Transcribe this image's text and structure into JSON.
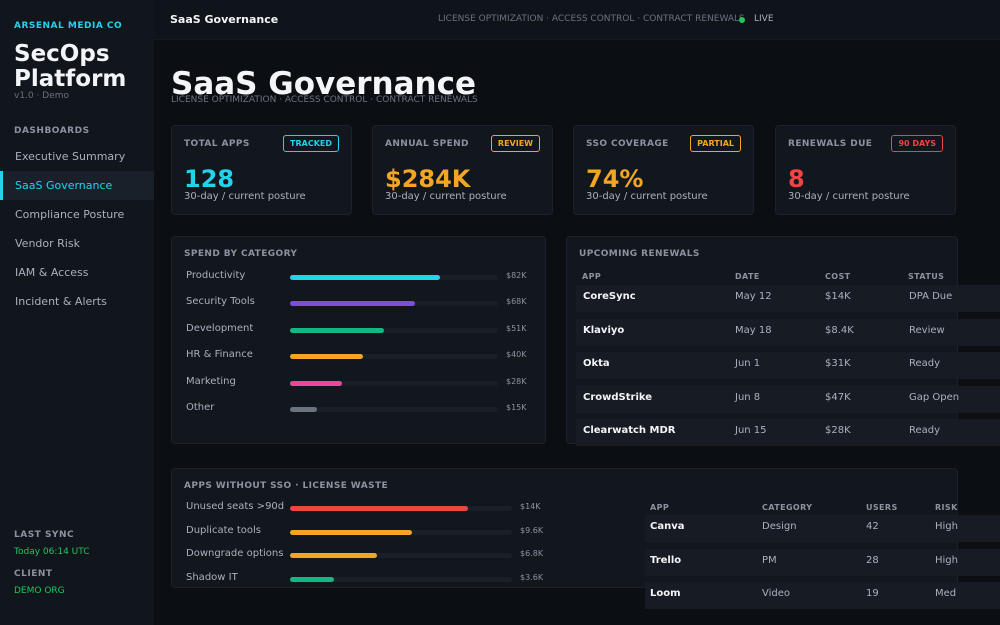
{
  "sidebar": {
    "org": "ARSENAL MEDIA CO",
    "app_title": "SecOps Platform",
    "version": "v1.0 · Demo",
    "section_label": "DASHBOARDS",
    "nav": [
      {
        "label": "Executive Summary"
      },
      {
        "label": "SaaS Governance",
        "active": true
      },
      {
        "label": "Compliance Posture"
      },
      {
        "label": "Vendor Risk"
      },
      {
        "label": "IAM & Access"
      },
      {
        "label": "Incident & Alerts"
      }
    ],
    "last_sync_label": "LAST SYNC",
    "last_sync_value": "Today 06:14 UTC",
    "client_label": "CLIENT",
    "client_value": "DEMO ORG"
  },
  "topbar": {
    "title": "SaaS Governance",
    "subtitle": "LICENSE OPTIMIZATION · ACCESS CONTROL · CONTRACT RENEWALS",
    "live": "LIVE"
  },
  "page": {
    "title": "SaaS Governance",
    "subtitle": "LICENSE OPTIMIZATION · ACCESS CONTROL · CONTRACT RENEWALS"
  },
  "kpis": [
    {
      "label": "TOTAL APPS",
      "badge": "TRACKED",
      "value": "128",
      "sub": "30-day / current posture",
      "color": "#22d3ee"
    },
    {
      "label": "ANNUAL SPEND",
      "badge": "REVIEW",
      "value": "$284K",
      "sub": "30-day / current posture",
      "color": "#f5a524"
    },
    {
      "label": "SSO COVERAGE",
      "badge": "PARTIAL",
      "value": "74%",
      "sub": "30-day / current posture",
      "color": "#f5a524"
    },
    {
      "label": "RENEWALS DUE",
      "badge": "90 DAYS",
      "value": "8",
      "sub": "30-day / current posture",
      "color": "#ef4444"
    }
  ],
  "spend": {
    "title": "SPEND BY CATEGORY",
    "items": [
      {
        "label": "Productivity",
        "value": "$82K",
        "fraction": 0.72,
        "color": "#22d3ee"
      },
      {
        "label": "Security Tools",
        "value": "$68K",
        "fraction": 0.6,
        "color": "#7c4ddf"
      },
      {
        "label": "Development",
        "value": "$51K",
        "fraction": 0.45,
        "color": "#10b981"
      },
      {
        "label": "HR & Finance",
        "value": "$40K",
        "fraction": 0.35,
        "color": "#f5a524"
      },
      {
        "label": "Marketing",
        "value": "$28K",
        "fraction": 0.25,
        "color": "#ec4899"
      },
      {
        "label": "Other",
        "value": "$15K",
        "fraction": 0.13,
        "color": "#6b7280"
      }
    ]
  },
  "renewals": {
    "title": "UPCOMING RENEWALS",
    "headers": [
      "APP",
      "DATE",
      "COST",
      "STATUS"
    ],
    "rows": [
      [
        "CoreSync",
        "May 12",
        "$14K",
        "DPA Due"
      ],
      [
        "Klaviyo",
        "May 18",
        "$8.4K",
        "Review"
      ],
      [
        "Okta",
        "Jun 1",
        "$31K",
        "Ready"
      ],
      [
        "CrowdStrike",
        "Jun 8",
        "$47K",
        "Gap Open"
      ],
      [
        "Clearwatch MDR",
        "Jun 15",
        "$28K",
        "Ready"
      ]
    ]
  },
  "waste": {
    "title": "APPS WITHOUT SSO · LICENSE WASTE",
    "items": [
      {
        "label": "Unused seats >90d",
        "value": "$14K",
        "fraction": 0.8,
        "color": "#ef4444"
      },
      {
        "label": "Duplicate tools",
        "value": "$9.6K",
        "fraction": 0.55,
        "color": "#f5a524"
      },
      {
        "label": "Downgrade options",
        "value": "$6.8K",
        "fraction": 0.39,
        "color": "#f5a524"
      },
      {
        "label": "Shadow IT",
        "value": "$3.6K",
        "fraction": 0.2,
        "color": "#10b981"
      }
    ],
    "headers": [
      "APP",
      "CATEGORY",
      "USERS",
      "RISK"
    ],
    "rows": [
      [
        "Canva",
        "Design",
        "42",
        "High"
      ],
      [
        "Trello",
        "PM",
        "28",
        "High"
      ],
      [
        "Loom",
        "Video",
        "19",
        "Med"
      ]
    ]
  }
}
